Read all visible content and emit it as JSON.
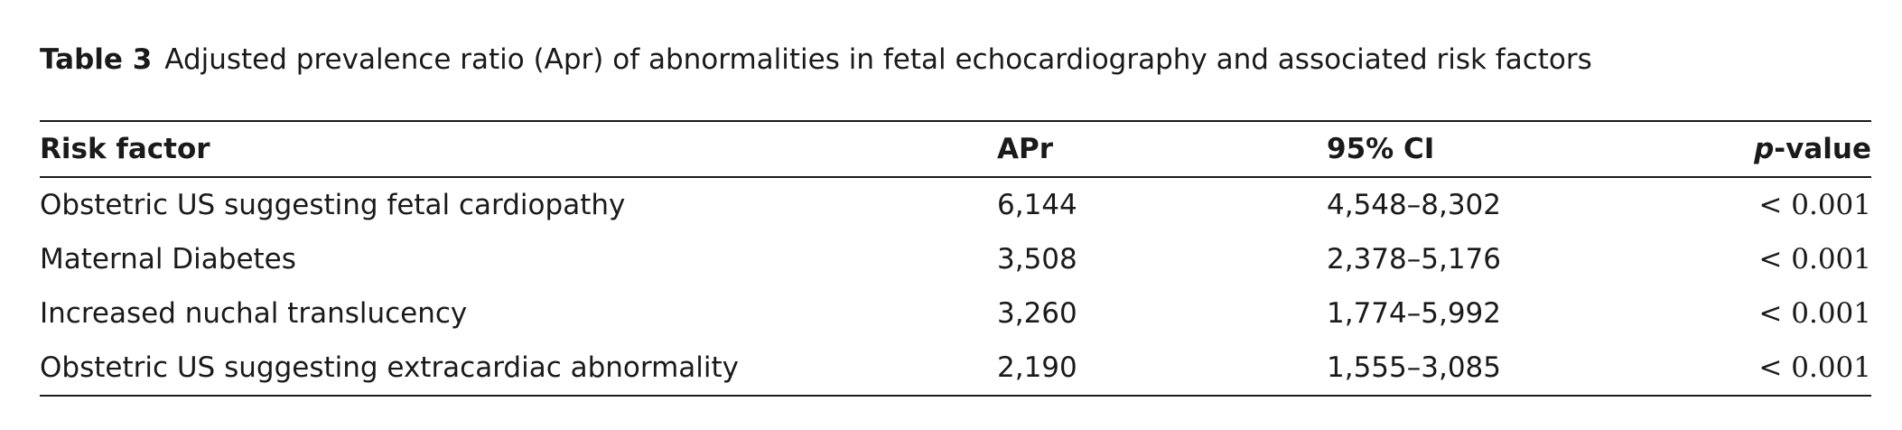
{
  "caption": {
    "label": "Table 3",
    "text": "Adjusted prevalence ratio (Apr) of abnormalities in fetal echocardiography and associated risk factors"
  },
  "table": {
    "headers": {
      "risk_factor": "Risk factor",
      "apr": "APr",
      "ci": "95% CI",
      "p_italic": "p",
      "p_rest": "-value"
    },
    "rows": [
      {
        "risk_factor": "Obstetric US suggesting fetal cardiopathy",
        "apr": "6,144",
        "ci": "4,548–8,302",
        "p": "< 0.001"
      },
      {
        "risk_factor": "Maternal Diabetes",
        "apr": "3,508",
        "ci": "2,378–5,176",
        "p": "< 0.001"
      },
      {
        "risk_factor": "Increased nuchal translucency",
        "apr": "3,260",
        "ci": "1,774–5,992",
        "p": "< 0.001"
      },
      {
        "risk_factor": "Obstetric US suggesting extracardiac abnormality",
        "apr": "2,190",
        "ci": "1,555–3,085",
        "p": "< 0.001"
      }
    ]
  }
}
